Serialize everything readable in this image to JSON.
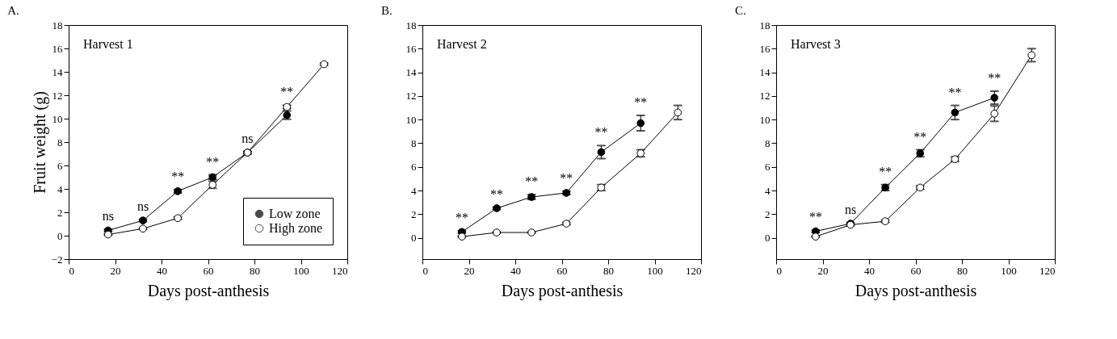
{
  "chart_data": [
    {
      "type": "line",
      "title": "A.",
      "xlabel": "Days post-anthesis",
      "ylabel": "Fruit weight (g)",
      "xlim": [
        0,
        120
      ],
      "xticks": [
        0,
        20,
        40,
        60,
        80,
        100,
        120
      ],
      "ylim": [
        -2,
        18
      ],
      "yticks": [
        -2,
        0,
        2,
        4,
        6,
        8,
        10,
        12,
        14,
        16,
        18
      ],
      "grid": false,
      "legend": "bottom right",
      "marker": "circle",
      "line_style": "solid",
      "series": [
        {
          "name": "Low zone",
          "color": "#000000",
          "x": [
            17,
            32,
            47,
            62,
            77,
            94
          ],
          "values": [
            0.45,
            1.3,
            3.8,
            5.0,
            7.1,
            10.3
          ],
          "errors": [
            0.1,
            0.1,
            0.15,
            0.2,
            0.1,
            0.35
          ]
        },
        {
          "name": "High zone",
          "color": "#000000",
          "x": [
            17,
            32,
            47,
            62,
            77,
            94,
            110
          ],
          "values": [
            0.1,
            0.6,
            1.5,
            4.35,
            7.1,
            11.0,
            14.65
          ],
          "errors": [
            0.05,
            0.05,
            0.1,
            0.3,
            0.1,
            0.15,
            0.1
          ]
        }
      ],
      "annotations": [
        "Harvest 1",
        "ns",
        "ns",
        "**",
        "**",
        "ns",
        "**"
      ]
    },
    {
      "type": "line",
      "title": "B.",
      "xlabel": "Days post-anthesis",
      "xlim": [
        0,
        120
      ],
      "xticks": [
        0,
        20,
        40,
        60,
        80,
        100,
        120
      ],
      "ylim": [
        -1.8,
        18
      ],
      "yticks": [
        0,
        2,
        4,
        6,
        8,
        10,
        12,
        14,
        16,
        18
      ],
      "grid": false,
      "marker": "circle",
      "line_style": "solid",
      "series": [
        {
          "color": "#000000",
          "x": [
            17,
            32,
            47,
            62,
            77,
            94
          ],
          "values": [
            0.5,
            2.5,
            3.45,
            3.8,
            7.25,
            9.7
          ],
          "errors": [
            0.1,
            0.1,
            0.2,
            0.15,
            0.55,
            0.65
          ]
        },
        {
          "color": "#000000",
          "x": [
            17,
            32,
            47,
            62,
            77,
            94,
            110
          ],
          "values": [
            0.1,
            0.45,
            0.45,
            1.2,
            4.25,
            7.15,
            10.6
          ],
          "errors": [
            0.05,
            0.05,
            0.05,
            0.1,
            0.25,
            0.3,
            0.6
          ]
        }
      ],
      "annotations": [
        "Harvest 2",
        "**",
        "**",
        "**",
        "**",
        "**",
        "**"
      ]
    },
    {
      "type": "line",
      "title": "C.",
      "xlabel": "Days post-anthesis",
      "xlim": [
        0,
        120
      ],
      "xticks": [
        0,
        20,
        40,
        60,
        80,
        100,
        120
      ],
      "ylim": [
        -1.8,
        18
      ],
      "yticks": [
        0,
        2,
        4,
        6,
        8,
        10,
        12,
        14,
        16,
        18
      ],
      "grid": false,
      "marker": "circle",
      "line_style": "solid",
      "series": [
        {
          "color": "#000000",
          "x": [
            17,
            32,
            47,
            62,
            77,
            94
          ],
          "values": [
            0.55,
            1.2,
            4.25,
            7.15,
            10.6,
            11.85
          ],
          "errors": [
            0.1,
            0.1,
            0.25,
            0.3,
            0.6,
            0.55
          ]
        },
        {
          "color": "#000000",
          "x": [
            17,
            32,
            47,
            62,
            77,
            94,
            110
          ],
          "values": [
            0.1,
            1.1,
            1.4,
            4.25,
            6.65,
            10.5,
            15.45
          ],
          "errors": [
            0.05,
            0.1,
            0.1,
            0.15,
            0.2,
            0.65,
            0.55
          ]
        }
      ],
      "annotations": [
        "Harvest 3",
        "**",
        "ns",
        "**",
        "**",
        "**",
        "**"
      ]
    }
  ]
}
